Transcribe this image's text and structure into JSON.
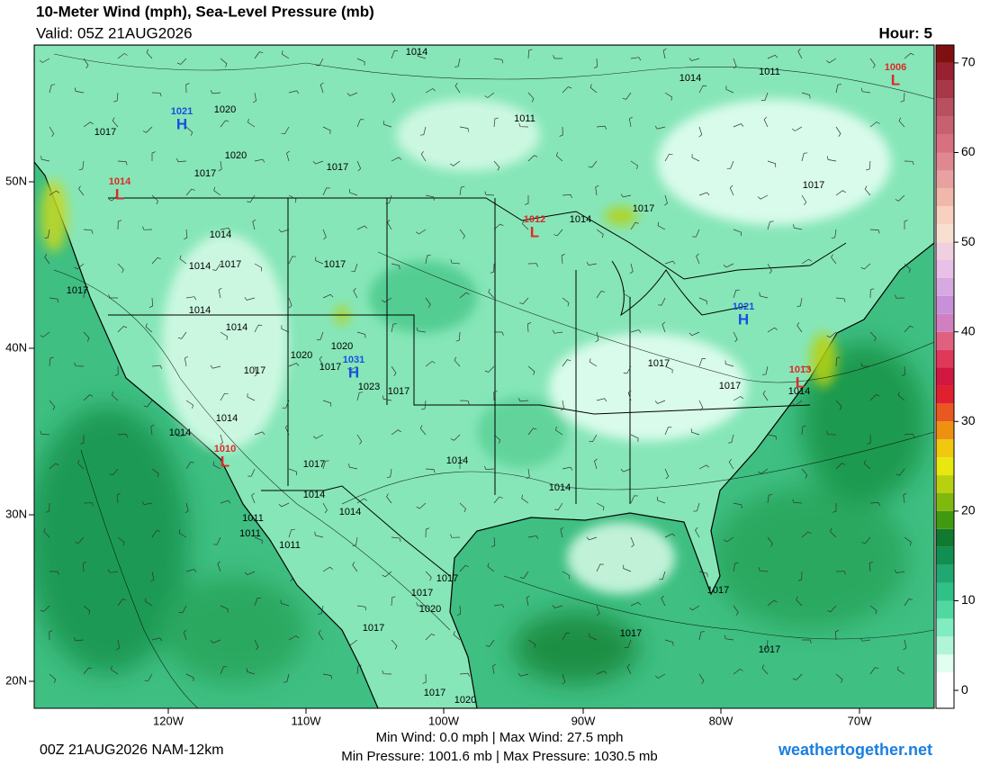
{
  "header": {
    "title": "10-Meter Wind (mph), Sea-Level Pressure (mb)",
    "valid": "Valid: 05Z 21AUG2026",
    "hour": "Hour: 5"
  },
  "map": {
    "lat_labels": [
      "50N",
      "40N",
      "30N",
      "20N"
    ],
    "lon_labels": [
      "120W",
      "110W",
      "100W",
      "90W",
      "80W",
      "70W"
    ],
    "pressure_centers": [
      {
        "symbol": "H",
        "value": 1021
      },
      {
        "symbol": "L",
        "value": 1014
      },
      {
        "symbol": "L",
        "value": 1012
      },
      {
        "symbol": "H",
        "value": 1021
      },
      {
        "symbol": "H",
        "value": 1031
      },
      {
        "symbol": "L",
        "value": 1013
      },
      {
        "symbol": "L",
        "value": 1010
      },
      {
        "symbol": "L",
        "value": 1006
      }
    ],
    "isobar_labels": [
      1014,
      1011,
      1014,
      1020,
      1017,
      1011,
      1020,
      1017,
      1017,
      1017,
      1014,
      1017,
      1014,
      1014,
      1017,
      1017,
      1017,
      1014,
      1014,
      1020,
      1020,
      1017,
      1023,
      1017,
      1017,
      1017,
      1017,
      1014,
      1014,
      1014,
      1014,
      1017,
      1014,
      1014,
      1014,
      1011,
      1011,
      1011,
      1017,
      1017,
      1020,
      1017,
      1017,
      1017,
      1017,
      1017,
      1020
    ]
  },
  "colorbar": {
    "lim": [
      -2,
      72
    ],
    "ticks": [
      0,
      10,
      20,
      30,
      40,
      50,
      60,
      70
    ],
    "colors": [
      "#ffffff",
      "#ffffff",
      "#e0fff0",
      "#b0f5d8",
      "#80ecc0",
      "#50d8a0",
      "#30c088",
      "#20a870",
      "#108f50",
      "#107a30",
      "#409a10",
      "#80b810",
      "#b8d010",
      "#e8e810",
      "#f0c810",
      "#f09010",
      "#e85820",
      "#e02030",
      "#d01840",
      "#e03858",
      "#e06080",
      "#d080c0",
      "#c890d8",
      "#d8a8e0",
      "#e8c0e8",
      "#f0d0e0",
      "#f8e0d0",
      "#f8d0c0",
      "#f0b8a8",
      "#e8a0a0",
      "#e08890",
      "#d87080",
      "#c86070",
      "#b85060",
      "#a83848",
      "#982030",
      "#801010"
    ]
  },
  "footer": {
    "run": "00Z 21AUG2026 NAM-12km",
    "wind_stats": "Min Wind:  0.0 mph | Max Wind:  27.5 mph",
    "pressure_stats": "Min Pressure: 1001.6 mb | Max Pressure: 1030.5 mb",
    "site": "weathertogether.net"
  }
}
